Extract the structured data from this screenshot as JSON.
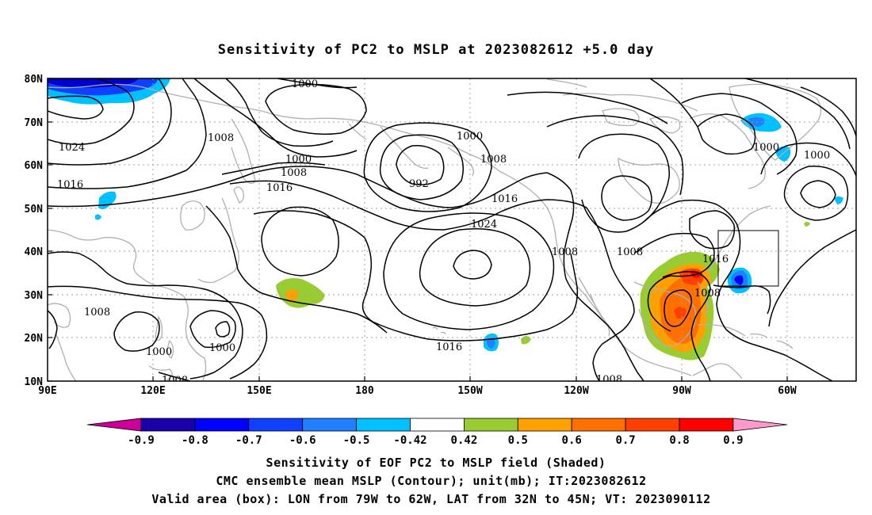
{
  "title": "Sensitivity of PC2 to MSLP at 2023082612 +5.0 day",
  "lat_labels": [
    "80N",
    "70N",
    "60N",
    "50N",
    "40N",
    "30N",
    "20N",
    "10N"
  ],
  "lon_labels": [
    "90E",
    "120E",
    "150E",
    "180",
    "150W",
    "120W",
    "90W",
    "60W"
  ],
  "contour_labels": [
    "1000",
    "1024",
    "1008",
    "1016",
    "1000",
    "1008",
    "1016",
    "992",
    "1000",
    "1008",
    "1016",
    "1024",
    "1008",
    "1008",
    "1000",
    "1000",
    "1016",
    "1008",
    "1008",
    "1000",
    "1000",
    "1008"
  ],
  "colorbar": {
    "ticks": [
      "-0.9",
      "-0.8",
      "-0.7",
      "-0.6",
      "-0.5",
      "-0.42",
      "0.42",
      "0.5",
      "0.6",
      "0.7",
      "0.8",
      "0.9"
    ],
    "colors": [
      "#1a00a8",
      "#0000ff",
      "#1040ff",
      "#2080ff",
      "#00c0ff",
      "#ffffff",
      "#99cc33",
      "#ffa000",
      "#ff7000",
      "#ff4000",
      "#ff0000"
    ],
    "under_color": "#cc0099",
    "over_color": "#ff99cc"
  },
  "captions": {
    "line1": "Sensitivity of EOF PC2 to MSLP field (Shaded)",
    "line2": "CMC ensemble mean MSLP (Contour); unit(mb); IT:2023082612",
    "line3": "Valid area (box): LON from 79W to 62W, LAT from 32N to 45N; VT: 2023090112"
  }
}
